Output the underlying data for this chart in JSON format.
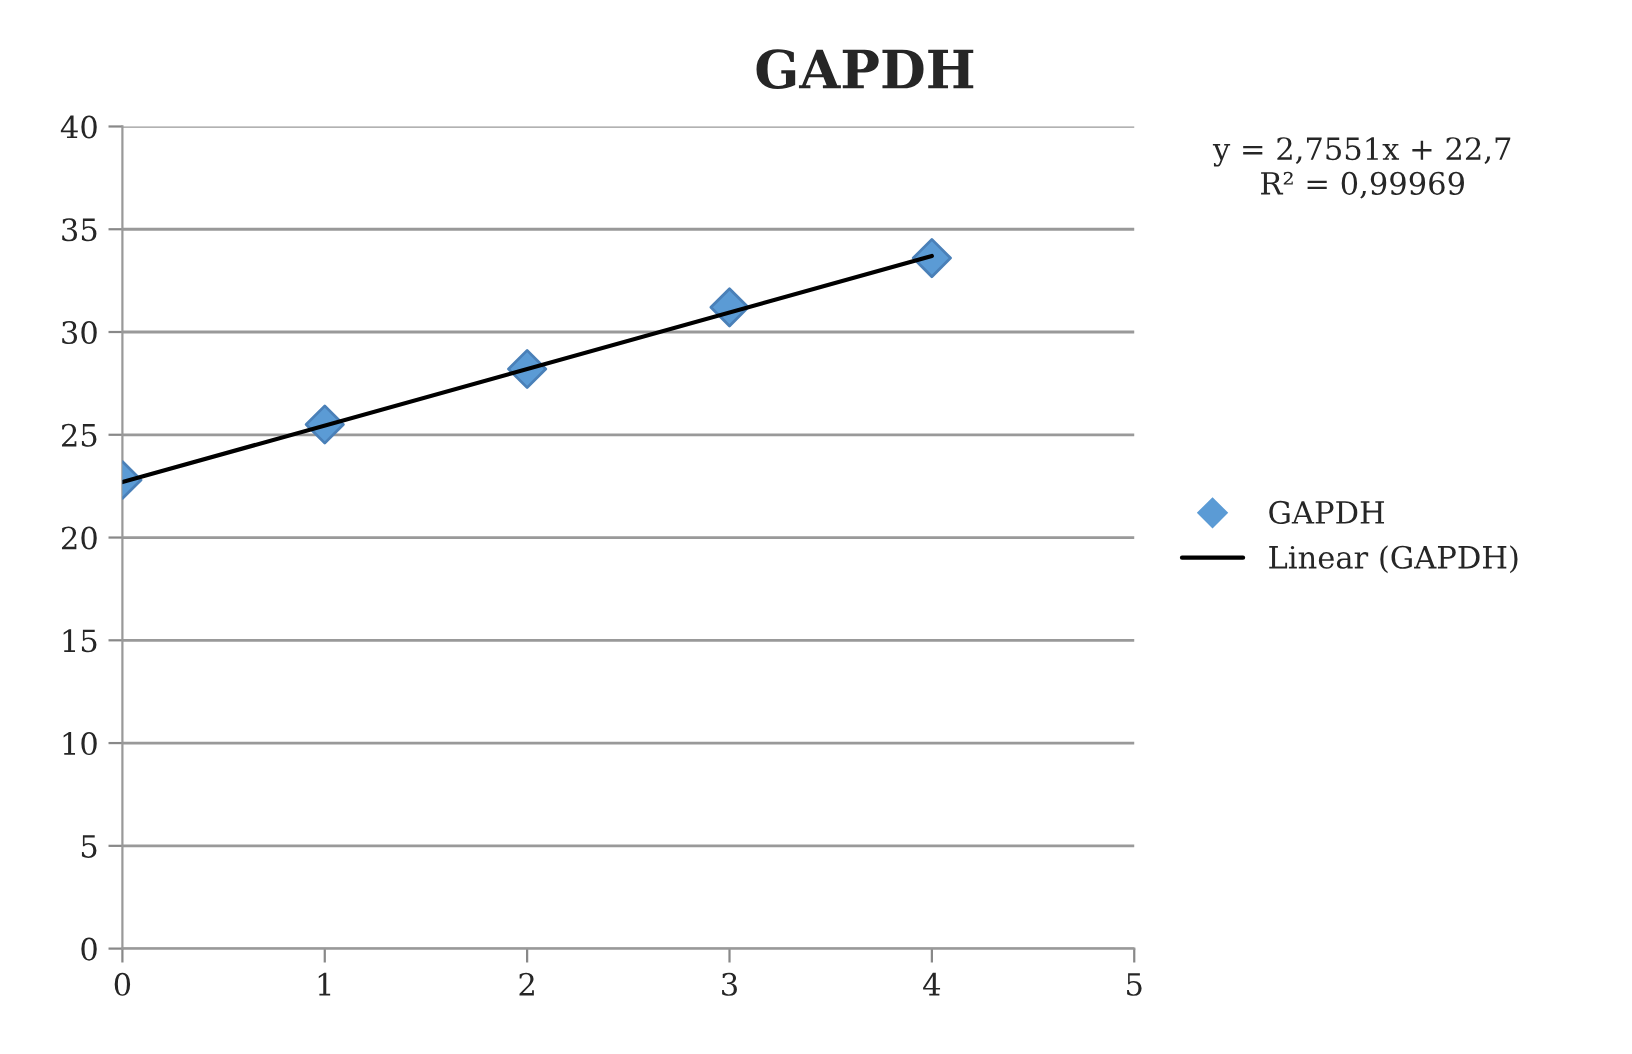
{
  "chart_data": {
    "type": "scatter",
    "title": "GAPDH",
    "series": [
      {
        "name": "GAPDH",
        "color": "#5b9bd5",
        "marker": "diamond",
        "x": [
          0,
          1,
          2,
          3,
          4
        ],
        "values": [
          22.8,
          25.5,
          28.2,
          31.2,
          33.6
        ]
      },
      {
        "name": "Linear (GAPDH)",
        "type": "line",
        "color": "#000000",
        "marker": "none",
        "line_style": "solid",
        "x": [
          0,
          4
        ],
        "values": [
          22.7,
          33.7
        ]
      }
    ],
    "xlim": [
      0,
      5
    ],
    "xticks": [
      0,
      1,
      2,
      3,
      4,
      5
    ],
    "ylim": [
      0,
      40
    ],
    "yticks": [
      0,
      5,
      10,
      15,
      20,
      25,
      30,
      35,
      40
    ],
    "grid": "y",
    "legend": "right",
    "annotations": [
      "y = 2,7551x + 22,7\nR² = 0,99969"
    ]
  }
}
